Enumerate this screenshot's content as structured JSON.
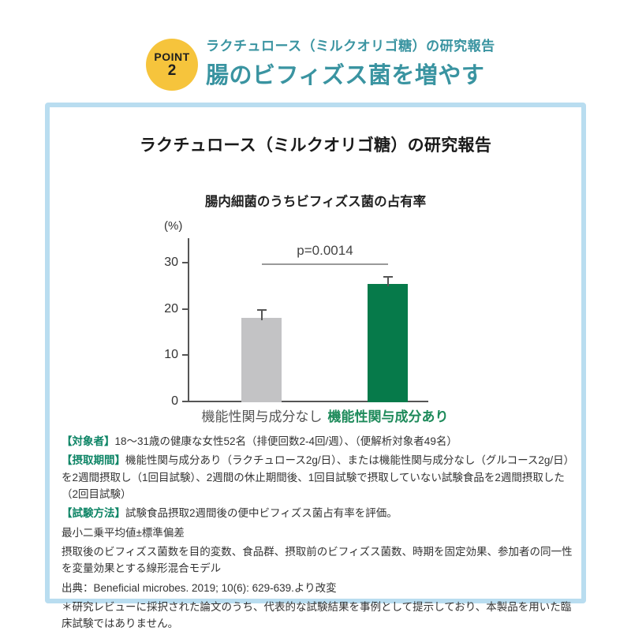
{
  "header": {
    "badge": {
      "line1": "POINT",
      "line2": "2"
    },
    "subtitle": "ラクチュロース（ミルクオリゴ糖）の研究報告",
    "title": "腸のビフィズス菌を増やす"
  },
  "card": {
    "title": "ラクチュロース（ミルクオリゴ糖）の研究報告",
    "chart_title": "腸内細菌のうちビフィズス菌の占有率"
  },
  "chart_data": {
    "type": "bar",
    "title": "腸内細菌のうちビフィズス菌の占有率",
    "unit_label": "(%)",
    "categories": [
      "機能性関与成分なし",
      "機能性関与成分あり"
    ],
    "values": [
      18.3,
      25.5
    ],
    "errors": [
      1.4,
      1.5
    ],
    "yticks": [
      0,
      10,
      20,
      30
    ],
    "ylim": [
      0,
      35
    ],
    "annotation": "p=0.0014",
    "bar_colors": [
      "#c3c3c5",
      "#067a4a"
    ],
    "label_colors": [
      "#555555",
      "#1d8a5a"
    ],
    "grid": false,
    "legend": "none"
  },
  "footer": {
    "study_notes": [
      {
        "label": "【対象者】",
        "text": "18〜31歳の健康な女性52名（排便回数2-4回/週）、（便解析対象者49名）"
      },
      {
        "label": "【摂取期間】",
        "text": "機能性関与成分あり（ラクチュロース2g/日）、または機能性関与成分なし（グルコース2g/日）を2週間摂取し（1回目試験）、2週間の休止期間後、1回目試験で摂取していない試験食品を2週間摂取した（2回目試験）"
      },
      {
        "label": "【試験方法】",
        "text": "試験食品摂取2週間後の便中ビフィズス菌占有率を評価。"
      }
    ],
    "notes": [
      "最小二乗平均値±標準偏差",
      "摂取後のビフィズス菌数を目的変数、食品群、摂取前のビフィズス菌数、時期を固定効果、参加者の同一性を変量効果とする線形混合モデル",
      "出典：Beneficial microbes. 2019; 10(6): 629-639.より改変",
      "＊研究レビューに採択された論文のうち、代表的な試験結果を事例として提示しており、本製品を用いた臨床試験ではありません。"
    ]
  },
  "colors": {
    "accent_teal": "#3a94a1",
    "badge_yellow": "#f6c43c",
    "card_border": "#b9ddf0",
    "bar_gray": "#c3c3c5",
    "bar_green": "#067a4a",
    "note_label_green": "#0e8566"
  }
}
